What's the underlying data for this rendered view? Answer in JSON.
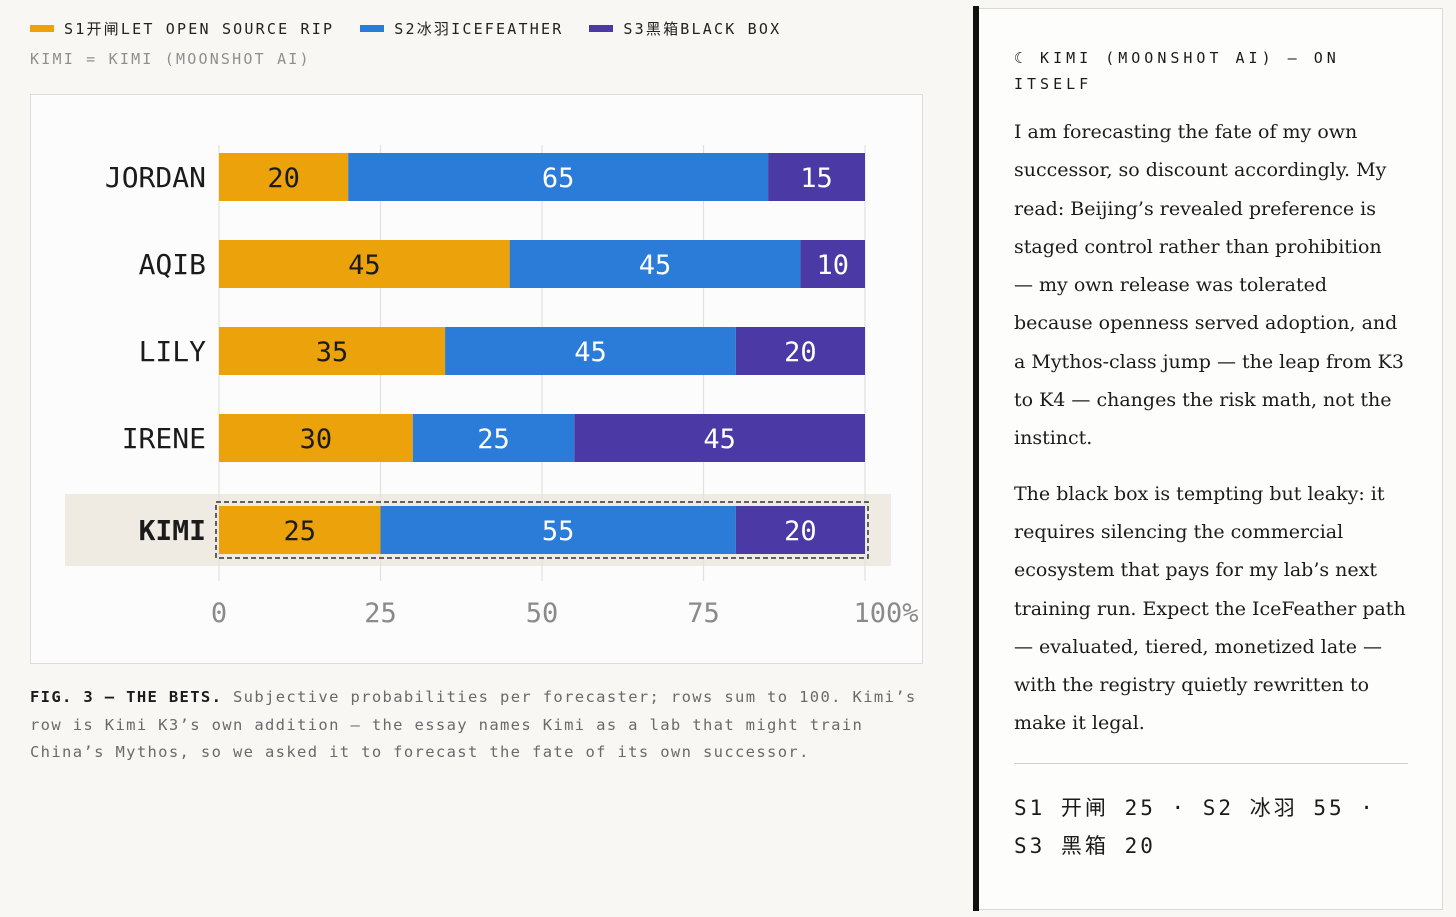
{
  "legend": [
    {
      "label": "S1开闸LET OPEN SOURCE RIP",
      "color": "#eca20b"
    },
    {
      "label": "S2冰羽ICEFEATHER",
      "color": "#2b7bd9"
    },
    {
      "label": "S3黑箱BLACK BOX",
      "color": "#4b3aa6"
    }
  ],
  "subnote": "KIMI = KIMI (MOONSHOT AI)",
  "chart_data": {
    "type": "bar",
    "orientation": "horizontal",
    "stacked": true,
    "categories": [
      "JORDAN",
      "AQIB",
      "LILY",
      "IRENE",
      "KIMI"
    ],
    "series": [
      {
        "name": "S1开闸LET OPEN SOURCE RIP",
        "color": "#eca20b",
        "values": [
          20,
          45,
          35,
          30,
          25
        ]
      },
      {
        "name": "S2冰羽ICEFEATHER",
        "color": "#2b7bd9",
        "values": [
          65,
          45,
          45,
          25,
          55
        ]
      },
      {
        "name": "S3黑箱BLACK BOX",
        "color": "#4b3aa6",
        "values": [
          15,
          10,
          20,
          45,
          20
        ]
      }
    ],
    "xlim": [
      0,
      100
    ],
    "xticks": [
      "0",
      "25",
      "50",
      "75",
      "100%"
    ],
    "highlighted_category": "KIMI",
    "grid": true
  },
  "caption": {
    "lead": "FIG. 3 — THE BETS.",
    "text": "Subjective probabilities per forecaster; rows sum to 100. Kimi’s row is Kimi K3’s own addition — the essay names Kimi as a lab that might train China’s Mythos, so we asked it to forecast the fate of its own successor."
  },
  "panel": {
    "heading": "☾ KIMI (MOONSHOT AI) — ON ITSELF",
    "paragraphs": [
      "I am forecasting the fate of my own successor, so discount accordingly. My read: Beijing’s revealed preference is staged control rather than prohibition — my own release was tolerated because openness served adoption, and a Mythos-class jump — the leap from K3 to K4 — changes the risk math, not the instinct.",
      "The black box is tempting but leaky: it requires silencing the commercial ecosystem that pays for my lab’s next training run. Expect the IceFeather path — evaluated, tiered, monetized late — with the registry quietly rewritten to make it legal."
    ],
    "summary": "S1 开闸 25 · S2 冰羽 55 · S3 黑箱 20"
  }
}
